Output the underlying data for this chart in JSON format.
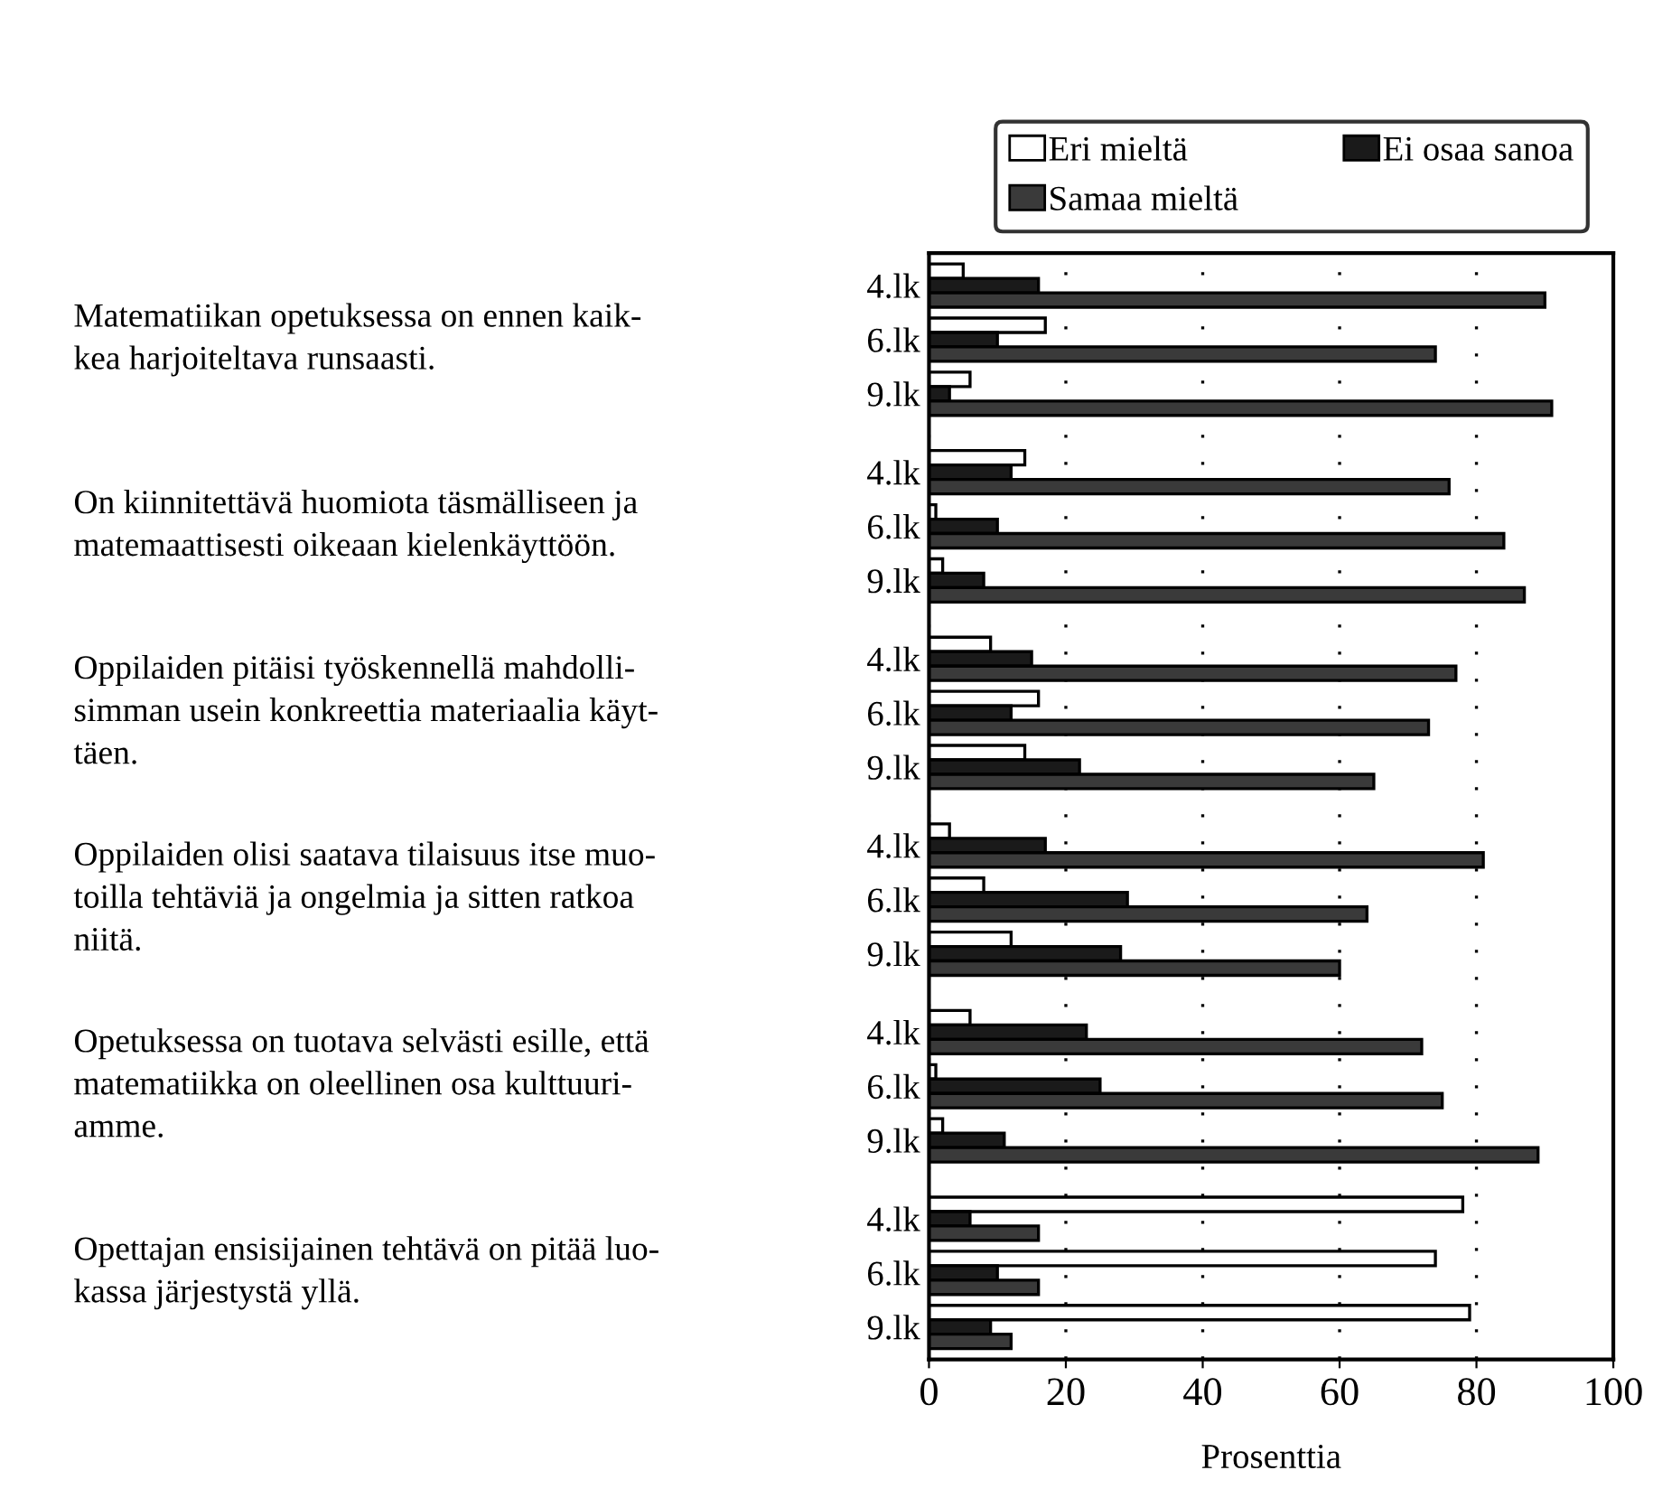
{
  "chart_data": {
    "type": "bar",
    "orientation": "horizontal",
    "categories": [
      "4.lk",
      "6.lk",
      "9.lk",
      "4.lk",
      "6.lk",
      "9.lk",
      "4.lk",
      "6.lk",
      "9.lk",
      "4.lk",
      "6.lk",
      "9.lk",
      "4.lk",
      "6.lk",
      "9.lk",
      "4.lk",
      "6.lk",
      "9.lk"
    ],
    "series": [
      {
        "name": "Eri mieltä",
        "color": "#ffffff",
        "values": [
          5,
          17,
          6,
          14,
          1,
          2,
          9,
          16,
          14,
          3,
          8,
          12,
          6,
          1,
          2,
          78,
          74,
          79
        ]
      },
      {
        "name": "Ei osaa sanoa",
        "color": "#1a1a1a",
        "values": [
          16,
          10,
          3,
          12,
          10,
          8,
          15,
          12,
          22,
          17,
          29,
          28,
          23,
          25,
          11,
          6,
          10,
          9
        ]
      },
      {
        "name": "Samaa mieltä",
        "color": "#3a3a3a",
        "values": [
          90,
          74,
          91,
          76,
          84,
          87,
          77,
          73,
          65,
          81,
          64,
          60,
          72,
          75,
          89,
          16,
          16,
          12
        ]
      }
    ],
    "xlabel": "Prosenttia",
    "xlim": [
      0,
      100
    ],
    "xticks": [
      0,
      20,
      40,
      60,
      80,
      100
    ],
    "grid": "x",
    "legend": "top",
    "annotations": [
      "Matematiikan opetuksessa on ennen kaik-\nkea harjoiteltava runsaasti.",
      "On kiinnitettävä huomiota täsmälliseen ja\nmatemaattisesti oikeaan kielenkäyttöön.",
      "Oppilaiden pitäisi työskennellä mahdolli-\nsimman usein konkreettia materiaalia käyt-\ntäen.",
      "Oppilaiden olisi saatava tilaisuus itse muo-\ntoilla tehtäviä ja ongelmia ja sitten ratkoa\nniitä.",
      "Opetuksessa on tuotava selvästi esille, että\nmatematiikka on oleellinen osa kulttuuri-\namme.",
      "Opettajan ensisijainen tehtävä on pitää luo-\nkassa järjestystä yllä."
    ]
  }
}
